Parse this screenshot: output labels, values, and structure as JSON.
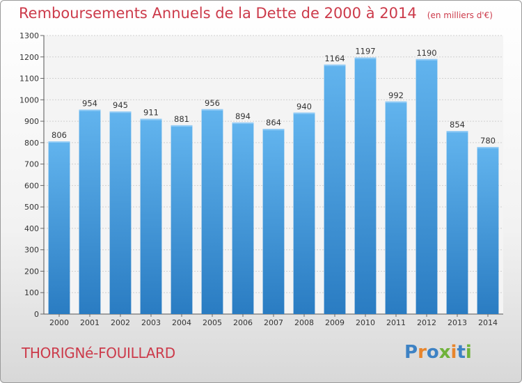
{
  "header": {
    "title": "Remboursements Annuels de la Dette de 2000 à 2014",
    "subtitle": "(en milliers d'€)"
  },
  "footer": {
    "commune": "THORIGNé-FOUILLARD",
    "logo_text": "Proxiti"
  },
  "colors": {
    "title": "#cc3a4a",
    "bar_light": "#62b4ee",
    "bar_dark": "#2a7cc2",
    "logo": [
      "#3d82c4",
      "#e8852b",
      "#3d82c4",
      "#6fb23a",
      "#e8852b",
      "#3d82c4",
      "#6fb23a"
    ]
  },
  "chart_data": {
    "type": "bar",
    "categories": [
      "2000",
      "2001",
      "2002",
      "2003",
      "2004",
      "2005",
      "2006",
      "2007",
      "2008",
      "2009",
      "2010",
      "2011",
      "2012",
      "2013",
      "2014"
    ],
    "values": [
      806,
      954,
      945,
      911,
      881,
      956,
      894,
      864,
      940,
      1164,
      1197,
      992,
      1190,
      854,
      780
    ],
    "ylim": [
      0,
      1300
    ],
    "yticks": [
      0,
      100,
      200,
      300,
      400,
      500,
      600,
      700,
      800,
      900,
      1000,
      1100,
      1200,
      1300
    ],
    "grid": true,
    "xlabel": "",
    "ylabel": ""
  }
}
